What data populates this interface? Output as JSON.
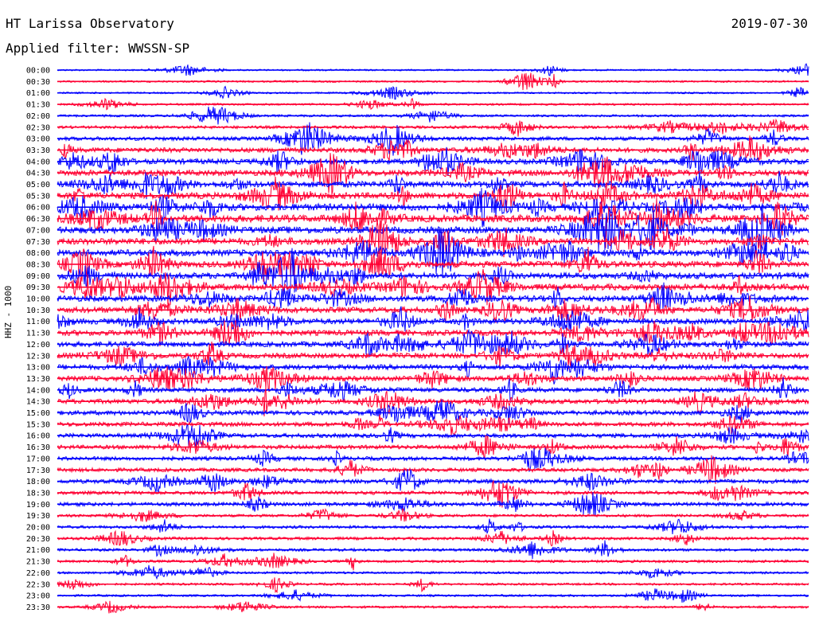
{
  "header": {
    "station": "HT Larissa Observatory",
    "date": "2019-07-30",
    "filter": "Applied filter: WWSSN-SP"
  },
  "channel_label": "HHZ - 1000",
  "colors": {
    "trace_a": "#0000ff",
    "trace_b": "#ff0033",
    "background": "#ffffff"
  },
  "chart_data": {
    "type": "line",
    "title": "HT Larissa Observatory",
    "subtitle": "Applied filter: WWSSN-SP",
    "ylabel": "HHZ - 1000",
    "xlabel": "",
    "row_labels": [
      "00:00",
      "00:30",
      "01:00",
      "01:30",
      "02:00",
      "02:30",
      "03:00",
      "03:30",
      "04:00",
      "04:30",
      "05:00",
      "05:30",
      "06:00",
      "06:30",
      "07:00",
      "07:30",
      "08:00",
      "08:30",
      "09:00",
      "09:30",
      "10:00",
      "10:30",
      "11:00",
      "11:30",
      "12:00",
      "12:30",
      "13:00",
      "13:30",
      "14:00",
      "14:30",
      "15:00",
      "15:30",
      "16:00",
      "16:30",
      "17:00",
      "17:30",
      "18:00",
      "18:30",
      "19:00",
      "19:30",
      "20:00",
      "20:30",
      "21:00",
      "21:30",
      "22:00",
      "22:30",
      "23:00",
      "23:30"
    ],
    "series": [
      {
        "color": "blue"
      },
      {
        "color": "red"
      }
    ],
    "activity_level": [
      0.05,
      0.08,
      0.06,
      0.1,
      0.14,
      0.22,
      0.35,
      0.48,
      0.55,
      0.62,
      0.66,
      0.7,
      0.78,
      0.82,
      0.76,
      0.72,
      0.7,
      0.68,
      0.68,
      0.7,
      0.64,
      0.62,
      0.6,
      0.58,
      0.55,
      0.54,
      0.52,
      0.5,
      0.46,
      0.45,
      0.44,
      0.42,
      0.4,
      0.38,
      0.36,
      0.34,
      0.4,
      0.3,
      0.34,
      0.2,
      0.22,
      0.22,
      0.2,
      0.18,
      0.14,
      0.13,
      0.12,
      0.14
    ],
    "grid": false,
    "legend": "none"
  }
}
